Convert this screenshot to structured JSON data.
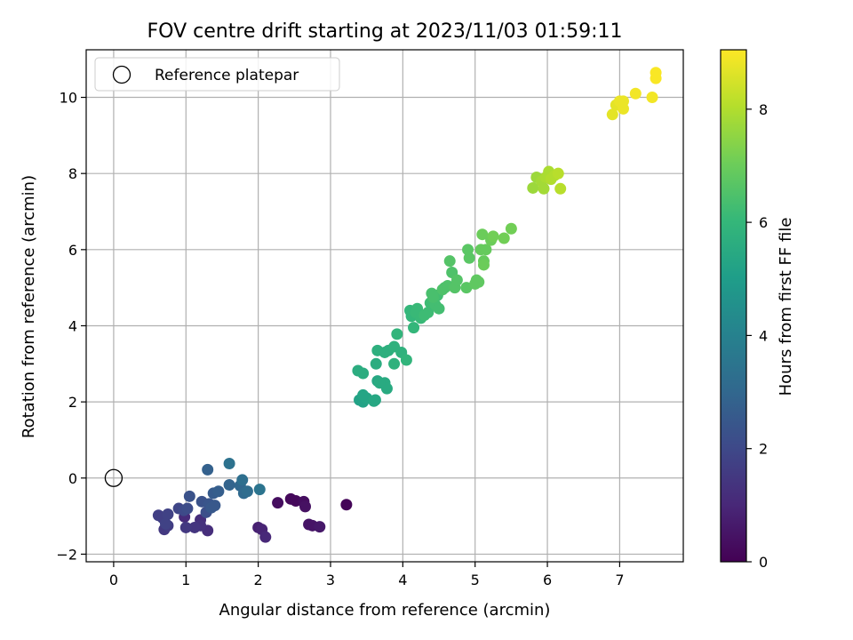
{
  "chart_data": {
    "type": "scatter",
    "title": "FOV centre drift starting at 2023/11/03 01:59:11",
    "xlabel": "Angular distance from reference (arcmin)",
    "ylabel": "Rotation from reference (arcmin)",
    "xlim": [
      -0.38,
      7.88
    ],
    "ylim": [
      -2.2,
      11.25
    ],
    "xticks": [
      0,
      1,
      2,
      3,
      4,
      5,
      6,
      7
    ],
    "yticks": [
      -2,
      0,
      2,
      4,
      6,
      8,
      10
    ],
    "grid": true,
    "legend": {
      "position": "top-left",
      "entries": [
        "Reference platepar"
      ]
    },
    "reference_point": {
      "x": 0,
      "y": 0
    },
    "colorbar": {
      "label": "Hours from first FF file",
      "min": 0,
      "max": 9.05,
      "ticks": [
        0,
        2,
        4,
        6,
        8
      ],
      "colormap": "viridis"
    },
    "points": [
      {
        "x": 3.22,
        "y": -0.7,
        "c": 0.1
      },
      {
        "x": 2.45,
        "y": -0.55,
        "c": 0.2
      },
      {
        "x": 2.52,
        "y": -0.6,
        "c": 0.2
      },
      {
        "x": 2.27,
        "y": -0.65,
        "c": 0.3
      },
      {
        "x": 2.63,
        "y": -0.62,
        "c": 0.3
      },
      {
        "x": 2.65,
        "y": -0.75,
        "c": 0.4
      },
      {
        "x": 2.7,
        "y": -1.22,
        "c": 0.5
      },
      {
        "x": 2.75,
        "y": -1.25,
        "c": 0.5
      },
      {
        "x": 2.85,
        "y": -1.28,
        "c": 0.6
      },
      {
        "x": 2.0,
        "y": -1.3,
        "c": 0.8
      },
      {
        "x": 2.05,
        "y": -1.35,
        "c": 0.9
      },
      {
        "x": 2.1,
        "y": -1.55,
        "c": 1.0
      },
      {
        "x": 0.98,
        "y": -1.02,
        "c": 1.1
      },
      {
        "x": 1.2,
        "y": -1.1,
        "c": 1.2
      },
      {
        "x": 1.3,
        "y": -1.38,
        "c": 1.2
      },
      {
        "x": 1.2,
        "y": -1.25,
        "c": 1.3
      },
      {
        "x": 1.12,
        "y": -1.3,
        "c": 1.4
      },
      {
        "x": 1.0,
        "y": -1.3,
        "c": 1.5
      },
      {
        "x": 0.7,
        "y": -1.35,
        "c": 1.5
      },
      {
        "x": 0.75,
        "y": -1.25,
        "c": 1.6
      },
      {
        "x": 0.62,
        "y": -0.98,
        "c": 1.7
      },
      {
        "x": 0.68,
        "y": -1.05,
        "c": 1.7
      },
      {
        "x": 0.72,
        "y": -1.2,
        "c": 1.8
      },
      {
        "x": 0.75,
        "y": -0.95,
        "c": 1.8
      },
      {
        "x": 0.9,
        "y": -0.8,
        "c": 1.9
      },
      {
        "x": 0.97,
        "y": -0.85,
        "c": 2.0
      },
      {
        "x": 1.02,
        "y": -0.8,
        "c": 2.1
      },
      {
        "x": 1.28,
        "y": -0.9,
        "c": 2.2
      },
      {
        "x": 1.05,
        "y": -0.48,
        "c": 2.3
      },
      {
        "x": 1.22,
        "y": -0.62,
        "c": 2.3
      },
      {
        "x": 1.32,
        "y": -0.68,
        "c": 2.4
      },
      {
        "x": 1.35,
        "y": -0.78,
        "c": 2.5
      },
      {
        "x": 1.4,
        "y": -0.72,
        "c": 2.5
      },
      {
        "x": 1.38,
        "y": -0.4,
        "c": 2.6
      },
      {
        "x": 1.45,
        "y": -0.35,
        "c": 2.7
      },
      {
        "x": 1.3,
        "y": 0.22,
        "c": 2.8
      },
      {
        "x": 1.6,
        "y": -0.18,
        "c": 2.9
      },
      {
        "x": 1.75,
        "y": -0.2,
        "c": 3.0
      },
      {
        "x": 1.8,
        "y": -0.4,
        "c": 3.1
      },
      {
        "x": 1.85,
        "y": -0.35,
        "c": 3.2
      },
      {
        "x": 1.78,
        "y": -0.05,
        "c": 3.3
      },
      {
        "x": 1.6,
        "y": 0.38,
        "c": 3.4
      },
      {
        "x": 2.02,
        "y": -0.3,
        "c": 3.5
      },
      {
        "x": 3.4,
        "y": 2.05,
        "c": 5.2
      },
      {
        "x": 3.45,
        "y": 2.0,
        "c": 5.2
      },
      {
        "x": 3.5,
        "y": 2.1,
        "c": 5.3
      },
      {
        "x": 3.45,
        "y": 2.18,
        "c": 5.3
      },
      {
        "x": 3.6,
        "y": 2.02,
        "c": 5.4
      },
      {
        "x": 3.62,
        "y": 2.05,
        "c": 5.4
      },
      {
        "x": 3.65,
        "y": 2.55,
        "c": 5.4
      },
      {
        "x": 3.75,
        "y": 2.5,
        "c": 5.5
      },
      {
        "x": 3.78,
        "y": 2.35,
        "c": 5.5
      },
      {
        "x": 3.68,
        "y": 2.5,
        "c": 5.5
      },
      {
        "x": 3.38,
        "y": 2.82,
        "c": 5.6
      },
      {
        "x": 3.45,
        "y": 2.75,
        "c": 5.6
      },
      {
        "x": 3.63,
        "y": 3.0,
        "c": 5.6
      },
      {
        "x": 3.65,
        "y": 3.35,
        "c": 5.7
      },
      {
        "x": 3.75,
        "y": 3.3,
        "c": 5.7
      },
      {
        "x": 3.8,
        "y": 3.35,
        "c": 5.7
      },
      {
        "x": 3.88,
        "y": 3.45,
        "c": 5.8
      },
      {
        "x": 3.88,
        "y": 3.0,
        "c": 5.8
      },
      {
        "x": 3.98,
        "y": 3.3,
        "c": 5.8
      },
      {
        "x": 4.05,
        "y": 3.1,
        "c": 5.9
      },
      {
        "x": 3.92,
        "y": 3.78,
        "c": 5.9
      },
      {
        "x": 4.12,
        "y": 4.25,
        "c": 6.0
      },
      {
        "x": 4.15,
        "y": 3.95,
        "c": 6.0
      },
      {
        "x": 4.1,
        "y": 4.4,
        "c": 6.0
      },
      {
        "x": 4.2,
        "y": 4.45,
        "c": 6.1
      },
      {
        "x": 4.18,
        "y": 4.35,
        "c": 6.1
      },
      {
        "x": 4.25,
        "y": 4.2,
        "c": 6.1
      },
      {
        "x": 4.35,
        "y": 4.35,
        "c": 6.2
      },
      {
        "x": 4.3,
        "y": 4.28,
        "c": 6.2
      },
      {
        "x": 4.38,
        "y": 4.6,
        "c": 6.2
      },
      {
        "x": 4.45,
        "y": 4.55,
        "c": 6.3
      },
      {
        "x": 4.5,
        "y": 4.45,
        "c": 6.3
      },
      {
        "x": 4.48,
        "y": 4.8,
        "c": 6.3
      },
      {
        "x": 4.4,
        "y": 4.85,
        "c": 6.4
      },
      {
        "x": 4.42,
        "y": 4.75,
        "c": 6.4
      },
      {
        "x": 4.58,
        "y": 5.0,
        "c": 6.4
      },
      {
        "x": 4.55,
        "y": 4.95,
        "c": 6.5
      },
      {
        "x": 4.62,
        "y": 5.05,
        "c": 6.5
      },
      {
        "x": 4.68,
        "y": 5.4,
        "c": 6.5
      },
      {
        "x": 4.72,
        "y": 5.0,
        "c": 6.6
      },
      {
        "x": 4.65,
        "y": 5.7,
        "c": 6.6
      },
      {
        "x": 4.75,
        "y": 5.2,
        "c": 6.6
      },
      {
        "x": 4.88,
        "y": 5.0,
        "c": 6.7
      },
      {
        "x": 4.92,
        "y": 5.78,
        "c": 6.7
      },
      {
        "x": 4.9,
        "y": 6.0,
        "c": 6.7
      },
      {
        "x": 5.0,
        "y": 5.1,
        "c": 6.8
      },
      {
        "x": 5.05,
        "y": 5.15,
        "c": 6.8
      },
      {
        "x": 5.02,
        "y": 5.2,
        "c": 6.8
      },
      {
        "x": 5.08,
        "y": 6.0,
        "c": 6.9
      },
      {
        "x": 5.15,
        "y": 6.0,
        "c": 6.9
      },
      {
        "x": 5.12,
        "y": 5.7,
        "c": 6.9
      },
      {
        "x": 5.12,
        "y": 5.6,
        "c": 7.0
      },
      {
        "x": 5.1,
        "y": 6.4,
        "c": 7.0
      },
      {
        "x": 5.22,
        "y": 6.25,
        "c": 7.0
      },
      {
        "x": 5.25,
        "y": 6.35,
        "c": 7.1
      },
      {
        "x": 5.4,
        "y": 6.3,
        "c": 7.1
      },
      {
        "x": 5.5,
        "y": 6.55,
        "c": 7.1
      },
      {
        "x": 5.8,
        "y": 7.62,
        "c": 7.7
      },
      {
        "x": 5.85,
        "y": 7.9,
        "c": 7.7
      },
      {
        "x": 5.92,
        "y": 7.8,
        "c": 7.8
      },
      {
        "x": 5.95,
        "y": 7.6,
        "c": 7.8
      },
      {
        "x": 5.98,
        "y": 7.9,
        "c": 7.9
      },
      {
        "x": 6.02,
        "y": 8.05,
        "c": 7.9
      },
      {
        "x": 6.05,
        "y": 7.85,
        "c": 8.0
      },
      {
        "x": 6.1,
        "y": 7.95,
        "c": 8.0
      },
      {
        "x": 6.15,
        "y": 8.0,
        "c": 8.1
      },
      {
        "x": 6.18,
        "y": 7.6,
        "c": 8.1
      },
      {
        "x": 6.9,
        "y": 9.55,
        "c": 8.7
      },
      {
        "x": 6.95,
        "y": 9.8,
        "c": 8.7
      },
      {
        "x": 7.0,
        "y": 9.9,
        "c": 8.8
      },
      {
        "x": 7.05,
        "y": 9.7,
        "c": 8.8
      },
      {
        "x": 7.05,
        "y": 9.9,
        "c": 8.8
      },
      {
        "x": 7.22,
        "y": 10.1,
        "c": 8.9
      },
      {
        "x": 7.45,
        "y": 10.0,
        "c": 8.9
      },
      {
        "x": 7.5,
        "y": 10.5,
        "c": 9.0
      },
      {
        "x": 7.5,
        "y": 10.65,
        "c": 9.0
      }
    ]
  }
}
